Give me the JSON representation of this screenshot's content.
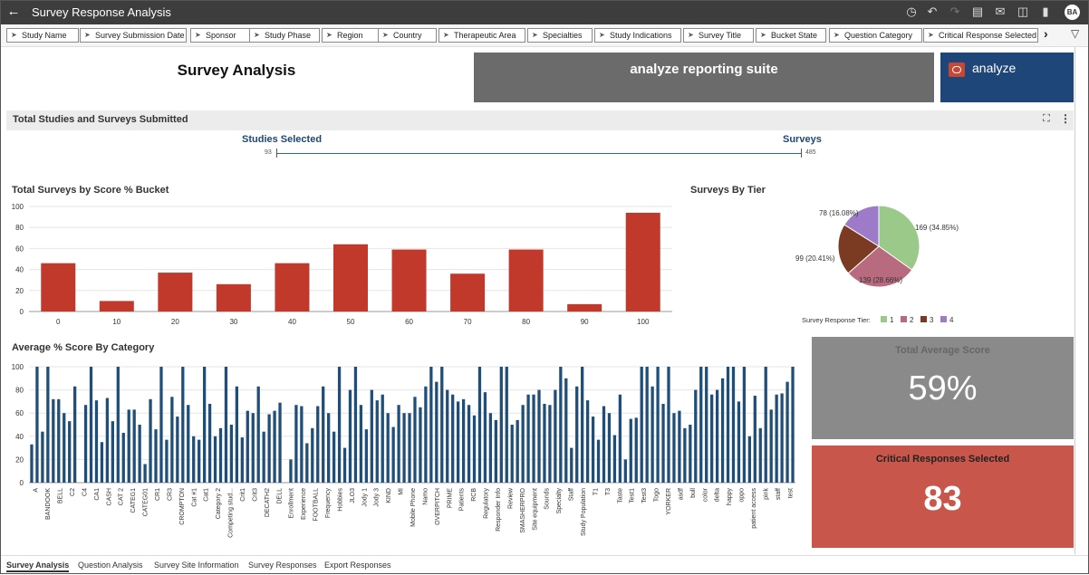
{
  "app": {
    "title": "Survey Response Analysis",
    "avatar_initials": "BA"
  },
  "toolbar_icons": [
    "history-icon",
    "undo-icon",
    "redo-icon",
    "save-icon",
    "comment-icon",
    "present-icon",
    "bookmark-icon",
    "more-icon"
  ],
  "filters": [
    "Study Name",
    "Survey Submission Date",
    "Sponsor",
    "Study Phase",
    "Region",
    "Country",
    "Therapeutic Area",
    "Specialties",
    "Study Indications",
    "Survey Title",
    "Bucket State",
    "Question Category",
    "Critical Response Selected"
  ],
  "header": {
    "title": "Survey Analysis",
    "banner": "analyze reporting suite",
    "logo_text": "analyze"
  },
  "section": {
    "title": "Total Studies and Surveys Submitted",
    "studies_label": "Studies Selected",
    "surveys_label": "Surveys",
    "studies_value": "93",
    "surveys_value": "485"
  },
  "chart_data": [
    {
      "type": "bar",
      "title": "Total Surveys by Score % Bucket",
      "categories": [
        "0",
        "10",
        "20",
        "30",
        "40",
        "50",
        "60",
        "70",
        "80",
        "90",
        "100"
      ],
      "values": [
        46,
        10,
        37,
        26,
        46,
        64,
        59,
        36,
        59,
        7,
        94
      ],
      "ylim": [
        0,
        100
      ],
      "yticks": [
        0,
        20,
        40,
        60,
        80,
        100
      ],
      "color": "#c0392b"
    },
    {
      "type": "pie",
      "title": "Surveys By Tier",
      "legend_title": "Survey Response Tier:",
      "labels": [
        "1",
        "2",
        "3",
        "4"
      ],
      "values": [
        169,
        139,
        99,
        78
      ],
      "slice_labels": [
        "169 (34.85%)",
        "139 (28.66%)",
        "99 (20.41%)",
        "78 (16.08%)"
      ],
      "colors": [
        "#9bc98a",
        "#b86b7f",
        "#7a3b22",
        "#9d7bc9"
      ],
      "legend": "bottom"
    },
    {
      "type": "bar",
      "title": "Average % Score By Category",
      "ylim": [
        0,
        100
      ],
      "yticks": [
        0,
        20,
        40,
        60,
        80,
        100
      ],
      "color": "#1f4e79",
      "tick_labels": [
        "A",
        "BANDOOK",
        "BELL",
        "C2",
        "C4",
        "CA1",
        "CASH",
        "CAT 2",
        "CATEG1",
        "CATEG01",
        "CR1",
        "CR3",
        "CROMPTON",
        "Cat #1",
        "Cat1",
        "Category 2",
        "Competing stud...",
        "Crit1",
        "Crit3",
        "DECATH2",
        "DELL",
        "Enrollment",
        "Experience",
        "FOOTBALL",
        "Frequency",
        "Hobbies",
        "JLO3",
        "Jody 1",
        "Jody 3",
        "KIND",
        "MI",
        "Mobile Phone",
        "Namo",
        "OVERPITCH",
        "PRIME",
        "Patients",
        "RCB",
        "Regulatory",
        "Responder Info",
        "Review",
        "SMASHERPRO",
        "Site equipment",
        "Sounds",
        "Specialty",
        "Staff",
        "Study Population",
        "T1",
        "T3",
        "Taste",
        "Test1",
        "Test3",
        "Togo",
        "YORKER",
        "asdf",
        "bull",
        "color",
        "delta",
        "happy",
        "oppo",
        "patient access",
        "pink",
        "staff",
        "test"
      ],
      "values": [
        33,
        100,
        44,
        100,
        72,
        72,
        60,
        53,
        83,
        0,
        67,
        100,
        71,
        35,
        73,
        53,
        100,
        43,
        63,
        63,
        50,
        16,
        72,
        46,
        100,
        37,
        74,
        57,
        100,
        67,
        40,
        37,
        100,
        68,
        40,
        47,
        100,
        50,
        83,
        39,
        62,
        60,
        83,
        44,
        59,
        62,
        69,
        0,
        20,
        67,
        66,
        34,
        47,
        66,
        83,
        60,
        44,
        100,
        30,
        80,
        100,
        67,
        46,
        80,
        71,
        76,
        60,
        48,
        67,
        60,
        60,
        74,
        65,
        83,
        100,
        87,
        100,
        80,
        76,
        70,
        72,
        67,
        58,
        100,
        78,
        60,
        54,
        100,
        100,
        50,
        54,
        67,
        76,
        76,
        80,
        68,
        67,
        80,
        100,
        90,
        30,
        83,
        100,
        71,
        57,
        37,
        66,
        60,
        41,
        76,
        20,
        55,
        56,
        100,
        100,
        83,
        100,
        68,
        100,
        60,
        62,
        47,
        50,
        80,
        100,
        100,
        76,
        80,
        90,
        100,
        100,
        70,
        100,
        40,
        75,
        47,
        100,
        63,
        76,
        77,
        87,
        100
      ]
    }
  ],
  "kpi": {
    "total_avg_label": "Total Average Score",
    "total_avg_value": "59%",
    "critical_label": "Critical Responses Selected",
    "critical_value": "83"
  },
  "tabs": [
    "Survey Analysis",
    "Question Analysis",
    "Survey Site Information",
    "Survey Responses",
    "Export Responses"
  ]
}
